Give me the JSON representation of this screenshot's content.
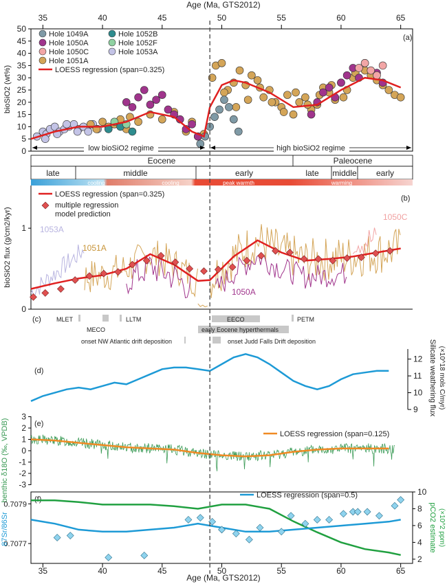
{
  "figure": {
    "top_axis_label": "Age (Ma, GTS2012)",
    "bottom_axis_label": "Age (Ma, GTS2012)",
    "age_ticks": [
      35,
      40,
      45,
      50,
      55,
      60,
      65
    ],
    "xlim": [
      34,
      66
    ],
    "boundary_age": 49,
    "colors": {
      "regression": "#e02020",
      "h1049A": "#7f9aa6",
      "h1050A": "#a0348c",
      "h1050C": "#f2a6a6",
      "h1051A": "#d4a558",
      "h1052B": "#2e8c8e",
      "h1052F": "#8fd1a1",
      "h1053A": "#c3c3e6",
      "d18o_raw": "#3a9a55",
      "d18o_loess": "#f08a24",
      "weathering": "#1d9ad6",
      "sr": "#1d9ad6",
      "pco2": "#20a040",
      "diamond": "#e05050",
      "sr_diamond": "#8fd3ee"
    }
  },
  "panel_a": {
    "tag": "(a)",
    "ylabel": "bioSiO2 (wt%)",
    "yticks": [
      0,
      5,
      10,
      15,
      20,
      25,
      30,
      35,
      40,
      45,
      50
    ],
    "legend": [
      {
        "label": "Hole 1049A",
        "color_key": "h1049A"
      },
      {
        "label": "Hole 1050A",
        "color_key": "h1050A"
      },
      {
        "label": "Hole 1050C",
        "color_key": "h1050C"
      },
      {
        "label": "Hole 1051A",
        "color_key": "h1051A"
      },
      {
        "label": "Hole 1052B",
        "color_key": "h1052B"
      },
      {
        "label": "Hole 1052F",
        "color_key": "h1052F"
      },
      {
        "label": "Hole 1053A",
        "color_key": "h1053A"
      }
    ],
    "loess_label": "LOESS regression (span=0.325)",
    "regime_low": "low bioSiO2 regime",
    "regime_high": "high bioSiO2 regime"
  },
  "epochs": {
    "eocene": "Eocene",
    "paleocene": "Paleocene",
    "sub": [
      "late",
      "middle",
      "early",
      "late",
      "middle",
      "early"
    ],
    "climate": [
      "cooling",
      "cooling",
      "peak warmth",
      "warming"
    ]
  },
  "panel_b": {
    "tag": "(b)",
    "ylabel": "bioSiO2 flux (g/cm2/kyr)",
    "yticks": [
      0,
      1
    ],
    "loess_label": "LOESS regression (span=0.325)",
    "model_label_1": "multiple regression",
    "model_label_2": "model prediction",
    "hole_labels": [
      "1053A",
      "1051A",
      "1050A",
      "1050C"
    ]
  },
  "panel_c": {
    "tag": "(c)",
    "events": [
      "MLET",
      "MECO",
      "LLTM",
      "EECO",
      "PETM",
      "early Eocene hyperthermals",
      "onset NW Atlantic drift deposition",
      "onset Judd Falls Drift deposition"
    ]
  },
  "panel_d": {
    "tag": "(d)",
    "ylabel_1": "Silicate weathering flux",
    "ylabel_2": "(×10^18 mols C/myr)",
    "yticks": [
      9,
      10,
      11,
      12
    ]
  },
  "panel_e": {
    "tag": "(e)",
    "ylabel": "benthic δ18O (‰, VPDB)",
    "yticks": [
      3,
      2,
      1,
      0,
      -1,
      -2,
      -3
    ],
    "loess_label": "LOESS regression (span=0.125)"
  },
  "panel_f": {
    "tag": "(f)",
    "ylabel_left": "87Sr/86Sr",
    "yticks_left": [
      "0.7079",
      "0.7077"
    ],
    "ylabel_right_1": "pCO2 estimate",
    "ylabel_right_2": "(×10^2 ppm)",
    "yticks_right": [
      2,
      4,
      6,
      8,
      10
    ],
    "loess_label": "LOESS regression (span=0.5)"
  },
  "chart_data": [
    {
      "panel": "a",
      "type": "scatter",
      "x_label": "Age (Ma, GTS2012)",
      "y_label": "bioSiO2 (wt%)",
      "ylim": [
        0,
        50
      ],
      "loess": {
        "x": [
          34,
          36,
          38,
          40,
          42,
          44,
          46,
          47.5,
          48.5,
          49,
          50,
          51,
          52,
          54,
          56,
          58,
          60,
          62,
          63.5,
          65
        ],
        "y": [
          5,
          8,
          10,
          10,
          12,
          16,
          14,
          8,
          6,
          18,
          27,
          29,
          28,
          24,
          18,
          19,
          25,
          30,
          29,
          26
        ]
      },
      "points": {
        "h1053A": {
          "x": [
            34.5,
            35,
            35.3,
            35.6,
            36,
            36.4,
            36.8,
            37.2,
            37.6,
            38,
            38.4,
            38.8,
            39.2,
            39.6,
            35.2,
            36.2,
            37,
            37.9
          ],
          "y": [
            6,
            8,
            7,
            9,
            10,
            8,
            9,
            10,
            11,
            9,
            10,
            8,
            11,
            9,
            5,
            7,
            11,
            8
          ]
        },
        "h1051A": {
          "x": [
            39,
            39.5,
            40,
            40.5,
            41,
            41.5,
            42,
            42.3,
            43,
            44,
            45,
            46,
            47,
            47.5,
            48,
            48.5,
            49.2,
            49.5,
            50,
            50.5,
            51,
            51.5,
            52,
            52.5,
            53,
            53.5,
            54,
            54.5,
            55,
            55.5,
            56,
            56.5,
            57,
            57.5,
            58,
            58.5,
            59,
            59.5,
            60,
            60.5,
            61,
            62,
            62.5,
            63,
            63.5,
            64,
            64.5,
            65,
            50.2,
            51.2,
            52.2,
            53.2,
            54.2,
            55.2,
            56.2,
            57.2,
            58.2,
            59.2,
            60.2,
            61.2
          ],
          "y": [
            11,
            9,
            12,
            10,
            11,
            13,
            9,
            14,
            12,
            15,
            13,
            16,
            8,
            12,
            6,
            7,
            30,
            35,
            36,
            25,
            28,
            33,
            27,
            31,
            29,
            22,
            25,
            20,
            18,
            23,
            15,
            20,
            22,
            17,
            19,
            26,
            24,
            21,
            28,
            25,
            30,
            33,
            31,
            29,
            27,
            25,
            23,
            22,
            24,
            18,
            21,
            26,
            20,
            16,
            24,
            19,
            23,
            27,
            22,
            32
          ]
        },
        "h1050A": {
          "x": [
            42,
            42.5,
            43,
            43.5,
            44,
            44.5,
            45,
            45.5,
            46,
            46.5,
            47,
            47.5,
            48,
            57.5,
            58,
            58.5,
            59,
            59.5,
            60,
            60.5,
            61,
            61.5,
            62,
            63,
            63.5
          ],
          "y": [
            20,
            18,
            22,
            25,
            19,
            21,
            23,
            17,
            15,
            13,
            9,
            11,
            6,
            15,
            20,
            24,
            26,
            22,
            28,
            31,
            34,
            30,
            36,
            32,
            28
          ]
        },
        "h1049A": {
          "x": [
            48.2,
            48.6,
            49,
            49.4,
            49.8,
            50.2,
            50.6,
            51,
            51.4
          ],
          "y": [
            3,
            6,
            10,
            14,
            17,
            21,
            18,
            13,
            8
          ]
        },
        "h1050C": {
          "x": [
            61.5,
            62,
            62.5,
            63,
            63.5
          ],
          "y": [
            34,
            36,
            33,
            31,
            35
          ]
        },
        "h1052B": {
          "x": [
            40.5,
            41.5,
            42.5
          ],
          "y": [
            9,
            10,
            8
          ]
        },
        "h1052F": {
          "x": [
            41,
            42
          ],
          "y": [
            12,
            11
          ]
        }
      }
    },
    {
      "panel": "b",
      "type": "line",
      "x_label": "Age (Ma, GTS2012)",
      "y_label": "bioSiO2 flux (g/cm2/kyr)",
      "ylim": [
        0,
        1.4
      ],
      "loess": {
        "x": [
          34,
          36,
          38,
          40,
          42,
          44,
          46,
          48,
          49,
          51,
          53,
          55,
          57,
          59,
          61,
          63,
          65
        ],
        "y": [
          0.25,
          0.32,
          0.38,
          0.42,
          0.5,
          0.68,
          0.55,
          0.35,
          0.36,
          0.65,
          0.85,
          0.7,
          0.6,
          0.62,
          0.65,
          0.7,
          0.75
        ]
      },
      "model": {
        "x": [
          34.2,
          35.2,
          36.5,
          37.7,
          38.9,
          40.1,
          41.3,
          42.5,
          43.7,
          44.9,
          46.1,
          47.3,
          48.5,
          49.7,
          50.9,
          52.1,
          53.3,
          54.5,
          55.7,
          56.9,
          58.1,
          59.3,
          60.5,
          61.7,
          62.9,
          64.1
        ],
        "y": [
          0.15,
          0.2,
          0.25,
          0.36,
          0.41,
          0.44,
          0.46,
          0.55,
          0.6,
          0.66,
          0.58,
          0.5,
          0.47,
          0.49,
          0.52,
          0.6,
          0.66,
          0.72,
          0.7,
          0.62,
          0.62,
          0.6,
          0.63,
          0.64,
          0.69,
          0.72
        ]
      }
    },
    {
      "panel": "d",
      "type": "line",
      "x_label": "Age (Ma, GTS2012)",
      "y_label": "Silicate weathering flux (×10^18 mols C/myr)",
      "ylim": [
        9,
        12.6
      ],
      "x": [
        34,
        35,
        36,
        37,
        38,
        39,
        40,
        41,
        42,
        43,
        44,
        45,
        46,
        47,
        48,
        49,
        50,
        51,
        52,
        53,
        54,
        55,
        56,
        57,
        58,
        59,
        60,
        61,
        62,
        63,
        64
      ],
      "y": [
        9.5,
        9.8,
        10.0,
        10.2,
        10.3,
        10.2,
        10.4,
        10.6,
        10.5,
        10.8,
        11.1,
        11.4,
        11.5,
        11.5,
        11.4,
        11.3,
        11.7,
        12.1,
        12.3,
        12.1,
        11.7,
        11.2,
        10.7,
        10.4,
        10.2,
        10.4,
        10.8,
        11.1,
        11.2,
        11.3,
        11.3
      ]
    },
    {
      "panel": "e",
      "type": "line",
      "x_label": "Age (Ma, GTS2012)",
      "y_label": "benthic δ18O (‰, VPDB)",
      "ylim": [
        -3,
        3
      ],
      "loess": {
        "x": [
          34,
          36,
          38,
          40,
          42,
          44,
          46,
          48,
          50,
          52,
          54,
          56,
          58,
          60,
          62,
          64
        ],
        "y": [
          1.0,
          0.9,
          0.7,
          0.5,
          0.3,
          0.2,
          0.1,
          -0.2,
          -0.4,
          -0.5,
          -0.4,
          -0.1,
          0.1,
          0.2,
          0.2,
          0.2
        ]
      }
    },
    {
      "panel": "f",
      "type": "line",
      "x_label": "Age (Ma, GTS2012)",
      "y_label": "87Sr/86Sr",
      "sr_loess": {
        "x": [
          34,
          36,
          38,
          40,
          42,
          44,
          46,
          48,
          50,
          52,
          54,
          56,
          58,
          60,
          62,
          64,
          65
        ],
        "y": [
          0.70782,
          0.7078,
          0.70777,
          0.70776,
          0.70776,
          0.70777,
          0.70778,
          0.7078,
          0.70778,
          0.70776,
          0.70776,
          0.70777,
          0.70778,
          0.70779,
          0.7078,
          0.70781,
          0.70782
        ]
      },
      "sr_points": {
        "x": [
          36.2,
          37.3,
          40.5,
          43.5,
          47.2,
          48.2,
          49.2,
          50,
          51.2,
          52.3,
          53.2,
          55,
          55.8,
          57,
          58,
          59,
          60.2,
          61,
          61.4,
          62.2,
          63.2,
          64.5,
          65
        ],
        "y": [
          0.70773,
          0.70774,
          0.70763,
          0.70764,
          0.70782,
          0.70783,
          0.70781,
          0.70777,
          0.70775,
          0.70772,
          0.70778,
          0.70776,
          0.70784,
          0.7078,
          0.70782,
          0.70782,
          0.70785,
          0.70786,
          0.70786,
          0.70786,
          0.70784,
          0.70789,
          0.70792
        ]
      },
      "pco2": {
        "x": [
          34,
          36,
          38,
          40,
          42,
          44,
          46,
          48,
          50,
          52,
          54,
          56,
          58,
          60,
          62,
          64,
          65
        ],
        "y": [
          9,
          9,
          8.8,
          8.5,
          8.5,
          8.5,
          8.3,
          8,
          8.5,
          8.5,
          8,
          6.5,
          5.2,
          4,
          3.2,
          2.8,
          2.5
        ]
      },
      "y2_label": "pCO2 estimate (×10^2 ppm)"
    }
  ]
}
